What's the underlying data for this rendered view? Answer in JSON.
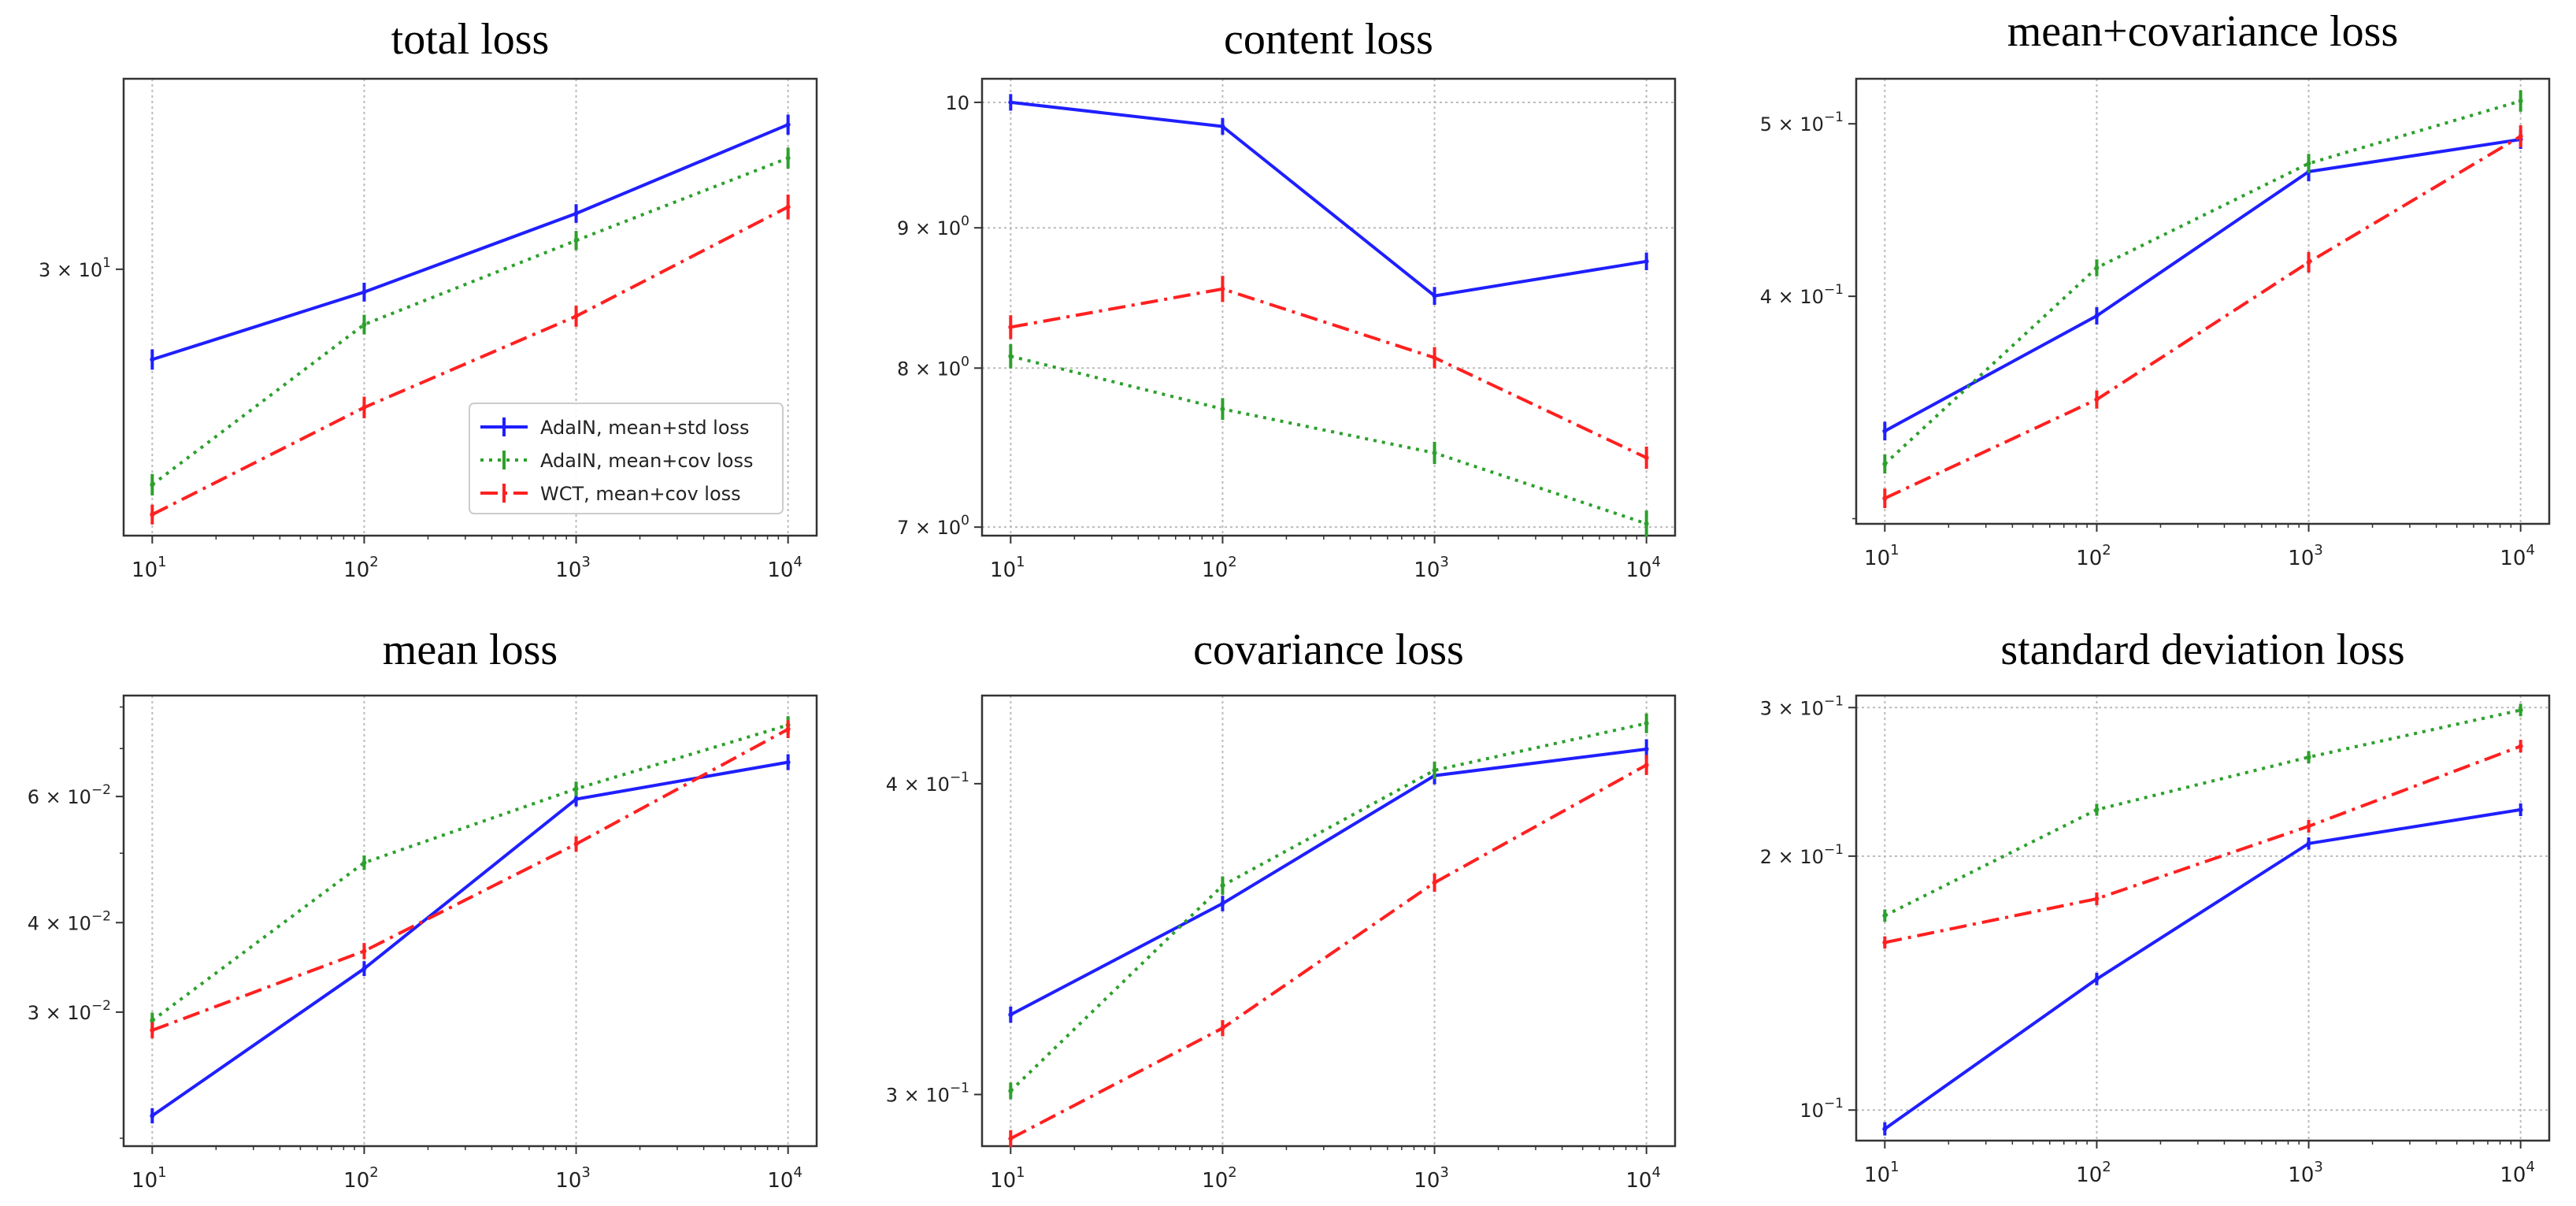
{
  "figure": {
    "legend": {
      "placement": "lower-right of first panel",
      "entries": [
        {
          "label": "AdaIN, mean+std loss",
          "series": "adain_std"
        },
        {
          "label": "AdaIN, mean+cov loss",
          "series": "adain_cov"
        },
        {
          "label": "WCT, mean+cov loss",
          "series": "wct_cov"
        }
      ]
    },
    "colors": {
      "adain_std": "#1f1fff",
      "adain_cov": "#2ca02c",
      "wct_cov": "#ff2020",
      "grid": "#bbbbbb",
      "axes": "#333333"
    }
  },
  "chart_data": [
    {
      "type": "line",
      "title": "total loss",
      "xscale": "log",
      "yscale": "log",
      "x": [
        10,
        100,
        1000,
        10000
      ],
      "xticks": [
        {
          "value": 10,
          "base": "10",
          "exp": "1"
        },
        {
          "value": 100,
          "base": "10",
          "exp": "2"
        },
        {
          "value": 1000,
          "base": "10",
          "exp": "3"
        },
        {
          "value": 10000,
          "base": "10",
          "exp": "4"
        }
      ],
      "ylim": [
        16.5,
        46
      ],
      "yticks": [
        {
          "value": 30,
          "mant": "3 × 10",
          "exp": "1"
        }
      ],
      "xgrid": true,
      "ygrid": false,
      "series": [
        {
          "name": "AdaIN, mean+std loss",
          "key": "adain_std",
          "values": [
            24.5,
            28.5,
            34.0,
            41.5
          ],
          "errors": [
            0.3,
            0.3,
            0.35,
            0.5
          ]
        },
        {
          "name": "AdaIN, mean+cov loss",
          "key": "adain_cov",
          "values": [
            18.5,
            26.5,
            32.0,
            38.5
          ],
          "errors": [
            0.25,
            0.3,
            0.35,
            0.5
          ]
        },
        {
          "name": "WCT, mean+cov loss",
          "key": "wct_cov",
          "values": [
            17.3,
            22.0,
            27.0,
            34.5
          ],
          "errors": [
            0.2,
            0.3,
            0.35,
            0.6
          ]
        }
      ]
    },
    {
      "type": "line",
      "title": "content loss",
      "xscale": "log",
      "yscale": "log",
      "x": [
        10,
        100,
        1000,
        10000
      ],
      "xticks": [
        {
          "value": 10,
          "base": "10",
          "exp": "1"
        },
        {
          "value": 100,
          "base": "10",
          "exp": "2"
        },
        {
          "value": 1000,
          "base": "10",
          "exp": "3"
        },
        {
          "value": 10000,
          "base": "10",
          "exp": "4"
        }
      ],
      "ylim": [
        6.95,
        10.2
      ],
      "yticks": [
        {
          "value": 7,
          "mant": "7 × 10",
          "exp": "0"
        },
        {
          "value": 8,
          "mant": "8 × 10",
          "exp": "0"
        },
        {
          "value": 9,
          "mant": "9 × 10",
          "exp": "0"
        },
        {
          "value": 10,
          "mant": "10",
          "exp": ""
        }
      ],
      "xgrid": true,
      "ygrid": true,
      "series": [
        {
          "name": "AdaIN, mean+std loss",
          "key": "adain_std",
          "values": [
            10.0,
            9.8,
            8.5,
            8.75
          ],
          "errors": [
            0.03,
            0.03,
            0.03,
            0.03
          ]
        },
        {
          "name": "AdaIN, mean+cov loss",
          "key": "adain_cov",
          "values": [
            8.08,
            7.73,
            7.45,
            7.02
          ],
          "errors": [
            0.05,
            0.04,
            0.04,
            0.05
          ]
        },
        {
          "name": "WCT, mean+cov loss",
          "key": "wct_cov",
          "values": [
            8.28,
            8.55,
            8.07,
            7.42
          ],
          "errors": [
            0.05,
            0.06,
            0.04,
            0.04
          ]
        }
      ]
    },
    {
      "type": "line",
      "title": "mean+covariance loss",
      "xscale": "log",
      "yscale": "log",
      "x": [
        10,
        100,
        1000,
        10000
      ],
      "xticks": [
        {
          "value": 10,
          "base": "10",
          "exp": "1"
        },
        {
          "value": 100,
          "base": "10",
          "exp": "2"
        },
        {
          "value": 1000,
          "base": "10",
          "exp": "3"
        },
        {
          "value": 10000,
          "base": "10",
          "exp": "4"
        }
      ],
      "ylim": [
        0.298,
        0.53
      ],
      "yticks": [
        {
          "value": 0.4,
          "mant": "4 × 10",
          "exp": "−1"
        },
        {
          "value": 0.5,
          "mant": "5 × 10",
          "exp": "−1"
        }
      ],
      "minor_yticks": [
        0.3
      ],
      "xgrid": true,
      "ygrid": false,
      "series": [
        {
          "name": "AdaIN, mean+std loss",
          "key": "adain_std",
          "values": [
            0.336,
            0.39,
            0.47,
            0.49
          ],
          "errors": [
            0.002,
            0.002,
            0.003,
            0.003
          ]
        },
        {
          "name": "AdaIN, mean+cov loss",
          "key": "adain_cov",
          "values": [
            0.322,
            0.415,
            0.475,
            0.515
          ],
          "errors": [
            0.002,
            0.002,
            0.003,
            0.004
          ]
        },
        {
          "name": "WCT, mean+cov loss",
          "key": "wct_cov",
          "values": [
            0.308,
            0.35,
            0.418,
            0.492
          ],
          "errors": [
            0.002,
            0.002,
            0.003,
            0.004
          ]
        }
      ]
    },
    {
      "type": "line",
      "title": "mean loss",
      "xscale": "log",
      "yscale": "log",
      "x": [
        10,
        100,
        1000,
        10000
      ],
      "xticks": [
        {
          "value": 10,
          "base": "10",
          "exp": "1"
        },
        {
          "value": 100,
          "base": "10",
          "exp": "2"
        },
        {
          "value": 1000,
          "base": "10",
          "exp": "3"
        },
        {
          "value": 10000,
          "base": "10",
          "exp": "4"
        }
      ],
      "ylim": [
        0.0195,
        0.083
      ],
      "yticks": [
        {
          "value": 0.03,
          "mant": "3 × 10",
          "exp": "−2"
        },
        {
          "value": 0.04,
          "mant": "4 × 10",
          "exp": "−2"
        },
        {
          "value": 0.06,
          "mant": "6 × 10",
          "exp": "−2"
        }
      ],
      "minor_yticks": [
        0.02,
        0.05,
        0.07,
        0.08
      ],
      "xgrid": true,
      "ygrid": false,
      "series": [
        {
          "name": "AdaIN, mean+std loss",
          "key": "adain_std",
          "values": [
            0.0215,
            0.0345,
            0.0595,
            0.067
          ],
          "errors": [
            0.0002,
            0.0003,
            0.0005,
            0.0007
          ]
        },
        {
          "name": "AdaIN, mean+cov loss",
          "key": "adain_cov",
          "values": [
            0.0292,
            0.0485,
            0.0615,
            0.0755
          ],
          "errors": [
            0.0003,
            0.0004,
            0.0005,
            0.001
          ]
        },
        {
          "name": "WCT, mean+cov loss",
          "key": "wct_cov",
          "values": [
            0.0283,
            0.0365,
            0.0515,
            0.0745
          ],
          "errors": [
            0.0003,
            0.0004,
            0.0005,
            0.001
          ]
        }
      ]
    },
    {
      "type": "line",
      "title": "covariance loss",
      "xscale": "log",
      "yscale": "log",
      "x": [
        10,
        100,
        1000,
        10000
      ],
      "xticks": [
        {
          "value": 10,
          "base": "10",
          "exp": "1"
        },
        {
          "value": 100,
          "base": "10",
          "exp": "2"
        },
        {
          "value": 1000,
          "base": "10",
          "exp": "3"
        },
        {
          "value": 10000,
          "base": "10",
          "exp": "4"
        }
      ],
      "ylim": [
        0.286,
        0.434
      ],
      "yticks": [
        {
          "value": 0.3,
          "mant": "3 × 10",
          "exp": "−1"
        },
        {
          "value": 0.4,
          "mant": "4 × 10",
          "exp": "−1"
        }
      ],
      "xgrid": true,
      "ygrid": false,
      "series": [
        {
          "name": "AdaIN, mean+std loss",
          "key": "adain_std",
          "values": [
            0.323,
            0.358,
            0.403,
            0.413
          ],
          "errors": [
            0.001,
            0.001,
            0.0015,
            0.002
          ]
        },
        {
          "name": "AdaIN, mean+cov loss",
          "key": "adain_cov",
          "values": [
            0.301,
            0.364,
            0.405,
            0.423
          ],
          "errors": [
            0.001,
            0.0015,
            0.0015,
            0.002
          ]
        },
        {
          "name": "WCT, mean+cov loss",
          "key": "wct_cov",
          "values": [
            0.288,
            0.319,
            0.365,
            0.407
          ],
          "errors": [
            0.001,
            0.001,
            0.0015,
            0.002
          ]
        }
      ]
    },
    {
      "type": "line",
      "title": "standard deviation loss",
      "xscale": "log",
      "yscale": "log",
      "x": [
        10,
        100,
        1000,
        10000
      ],
      "xticks": [
        {
          "value": 10,
          "base": "10",
          "exp": "1"
        },
        {
          "value": 100,
          "base": "10",
          "exp": "2"
        },
        {
          "value": 1000,
          "base": "10",
          "exp": "3"
        },
        {
          "value": 10000,
          "base": "10",
          "exp": "4"
        }
      ],
      "ylim": [
        0.092,
        0.31
      ],
      "yticks": [
        {
          "value": 0.1,
          "mant": "10",
          "exp": "−1"
        },
        {
          "value": 0.2,
          "mant": "2 × 10",
          "exp": "−1"
        },
        {
          "value": 0.3,
          "mant": "3 × 10",
          "exp": "−1"
        }
      ],
      "xgrid": true,
      "ygrid": true,
      "series": [
        {
          "name": "AdaIN, mean+std loss",
          "key": "adain_std",
          "values": [
            0.095,
            0.143,
            0.207,
            0.227
          ],
          "errors": [
            0.0005,
            0.0006,
            0.0008,
            0.001
          ]
        },
        {
          "name": "AdaIN, mean+cov loss",
          "key": "adain_cov",
          "values": [
            0.17,
            0.227,
            0.262,
            0.298
          ],
          "errors": [
            0.0007,
            0.0008,
            0.001,
            0.0012
          ]
        },
        {
          "name": "WCT, mean+cov loss",
          "key": "wct_cov",
          "values": [
            0.158,
            0.178,
            0.217,
            0.27
          ],
          "errors": [
            0.0006,
            0.0008,
            0.001,
            0.0012
          ]
        }
      ]
    }
  ]
}
